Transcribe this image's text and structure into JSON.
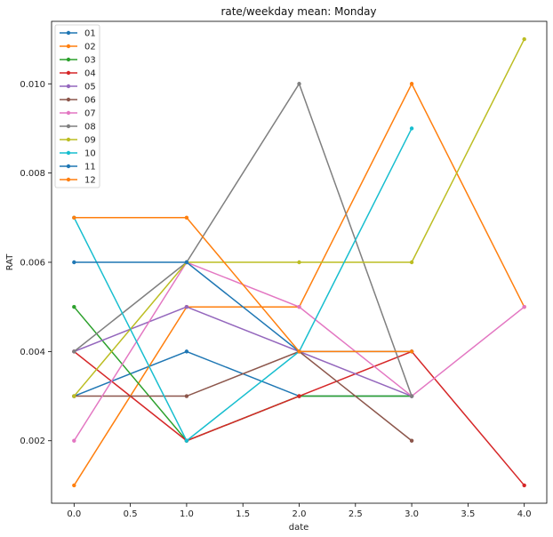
{
  "chart_data": {
    "type": "line",
    "title": "rate/weekday mean: Monday",
    "xlabel": "date",
    "ylabel": "RAT",
    "xlim": [
      -0.2,
      4.2
    ],
    "ylim": [
      0.0006,
      0.0114
    ],
    "xticks": [
      0.0,
      0.5,
      1.0,
      1.5,
      2.0,
      2.5,
      3.0,
      3.5,
      4.0
    ],
    "xtick_labels": [
      "0.0",
      "0.5",
      "1.0",
      "1.5",
      "2.0",
      "2.5",
      "3.0",
      "3.5",
      "4.0"
    ],
    "yticks": [
      0.002,
      0.004,
      0.006,
      0.008,
      0.01
    ],
    "ytick_labels": [
      "0.002",
      "0.004",
      "0.006",
      "0.008",
      "0.010"
    ],
    "grid": false,
    "legend_position": "top-left",
    "series": [
      {
        "name": "01",
        "color": "#1f77b4",
        "x": [
          0,
          1,
          2,
          3
        ],
        "y": [
          0.003,
          0.004,
          0.003,
          0.003
        ]
      },
      {
        "name": "02",
        "color": "#ff7f0e",
        "x": [
          0,
          1,
          2,
          3,
          4
        ],
        "y": [
          0.001,
          0.005,
          0.005,
          0.01,
          0.005
        ]
      },
      {
        "name": "03",
        "color": "#2ca02c",
        "x": [
          0,
          1,
          2,
          3
        ],
        "y": [
          0.005,
          0.002,
          0.003,
          0.003
        ]
      },
      {
        "name": "04",
        "color": "#d62728",
        "x": [
          0,
          1,
          2,
          3,
          4
        ],
        "y": [
          0.004,
          0.002,
          0.003,
          0.004,
          0.001
        ]
      },
      {
        "name": "05",
        "color": "#9467bd",
        "x": [
          0,
          1,
          2,
          3
        ],
        "y": [
          0.004,
          0.005,
          0.004,
          0.003
        ]
      },
      {
        "name": "06",
        "color": "#8c564b",
        "x": [
          0,
          1,
          2,
          3
        ],
        "y": [
          0.003,
          0.003,
          0.004,
          0.002
        ]
      },
      {
        "name": "07",
        "color": "#e377c2",
        "x": [
          0,
          1,
          2,
          3,
          4
        ],
        "y": [
          0.002,
          0.006,
          0.005,
          0.003,
          0.005
        ]
      },
      {
        "name": "08",
        "color": "#7f7f7f",
        "x": [
          0,
          1,
          2,
          3
        ],
        "y": [
          0.004,
          0.006,
          0.01,
          0.003
        ]
      },
      {
        "name": "09",
        "color": "#bcbd22",
        "x": [
          0,
          1,
          2,
          3,
          4
        ],
        "y": [
          0.003,
          0.006,
          0.006,
          0.006,
          0.011
        ]
      },
      {
        "name": "10",
        "color": "#17becf",
        "x": [
          0,
          1,
          2,
          3
        ],
        "y": [
          0.007,
          0.002,
          0.004,
          0.009
        ]
      },
      {
        "name": "11",
        "color": "#1f77b4",
        "x": [
          0,
          1,
          2,
          3
        ],
        "y": [
          0.006,
          0.006,
          0.004,
          0.004
        ]
      },
      {
        "name": "12",
        "color": "#ff7f0e",
        "x": [
          0,
          1,
          2,
          3
        ],
        "y": [
          0.007,
          0.007,
          0.004,
          0.004
        ]
      }
    ]
  }
}
